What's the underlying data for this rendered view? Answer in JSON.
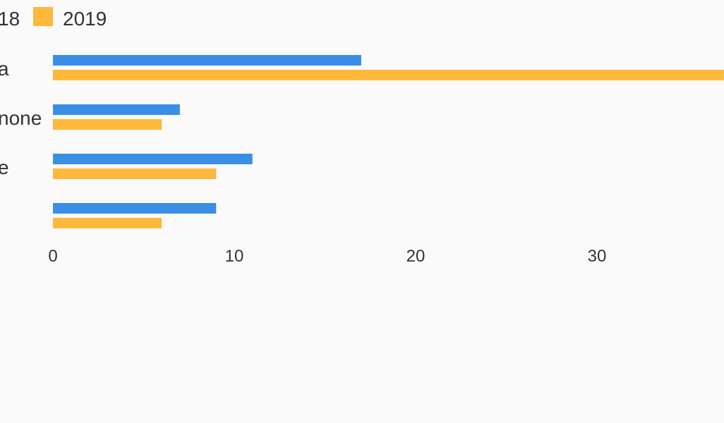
{
  "chart_data": {
    "type": "bar",
    "orientation": "horizontal",
    "categories": [
      "a",
      "none",
      "e",
      ""
    ],
    "series": [
      {
        "name": "18",
        "values": [
          17,
          7,
          11,
          9
        ],
        "color": "#3a8ee6"
      },
      {
        "name": "2019",
        "values": [
          37,
          6,
          9,
          6
        ],
        "color": "#ffb83a"
      }
    ],
    "x_ticks": [
      "0",
      "10",
      "20",
      "30"
    ],
    "xlim": [
      0,
      37
    ],
    "grid": false,
    "legend": "top-left"
  }
}
